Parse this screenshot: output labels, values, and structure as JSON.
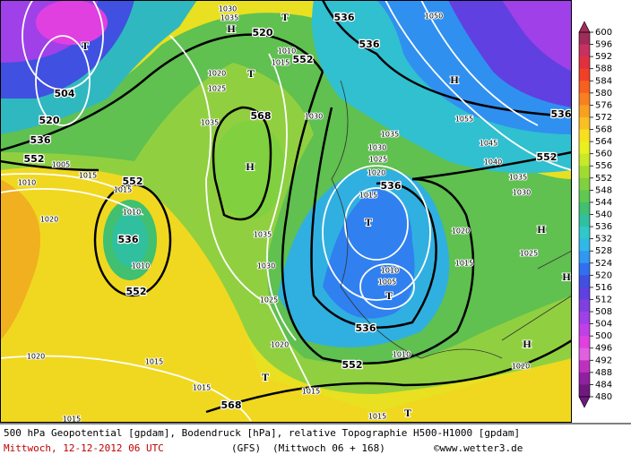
{
  "map": {
    "colorbar": {
      "ticks": [
        600,
        596,
        592,
        588,
        584,
        580,
        576,
        572,
        568,
        564,
        560,
        556,
        552,
        548,
        544,
        540,
        536,
        532,
        528,
        524,
        520,
        516,
        512,
        508,
        504,
        500,
        496,
        492,
        488,
        484,
        480
      ],
      "colors": [
        "#a02c5a",
        "#c83060",
        "#e03040",
        "#f04028",
        "#f86020",
        "#f88020",
        "#f8a020",
        "#f8c020",
        "#f8e020",
        "#e8f020",
        "#c8e828",
        "#a0dc30",
        "#80d040",
        "#60c850",
        "#40c070",
        "#30c0a0",
        "#30c8c8",
        "#30b8e8",
        "#3098f0",
        "#3070f0",
        "#4050e0",
        "#6040e0",
        "#8040e0",
        "#a040e8",
        "#c040e8",
        "#e040e0",
        "#e060e0",
        "#c030c0",
        "#9020a0",
        "#701880"
      ]
    },
    "contour_labels": [
      "536",
      "552",
      "520",
      "504",
      "536",
      "552",
      "552",
      "552",
      "536",
      "536",
      "568",
      "536",
      "536",
      "552",
      "568",
      "552",
      "536",
      "520"
    ],
    "centers": [
      "T",
      "H",
      "T",
      "T",
      "H",
      "H",
      "T",
      "T",
      "H",
      "H",
      "H",
      "T",
      "T"
    ],
    "pressure_labels": [
      "1005",
      "1010",
      "1015",
      "1015",
      "1010",
      "1010",
      "1020",
      "1020",
      "1015",
      "1015",
      "1015",
      "1015",
      "1015",
      "1010",
      "1020",
      "1025",
      "1030",
      "1035",
      "1030",
      "1035",
      "1025",
      "1020",
      "1030",
      "1035",
      "1010",
      "1015",
      "1050",
      "1055",
      "1045",
      "1040",
      "1035",
      "1030",
      "1020",
      "1015",
      "1025",
      "1035",
      "1030",
      "1025",
      "1020",
      "1015",
      "1010",
      "1005",
      "1020"
    ],
    "footer": {
      "line1": "500 hPa Geopotential [gpdam], Bodendruck [hPa], relative Topographie H500-H1000 [gpdam]",
      "date": "Mittwoch, 12-12-2012  06 UTC",
      "model": "(GFS)",
      "run": "(Mittwoch 06 + 168)",
      "source": "©www.wetter3.de"
    }
  }
}
